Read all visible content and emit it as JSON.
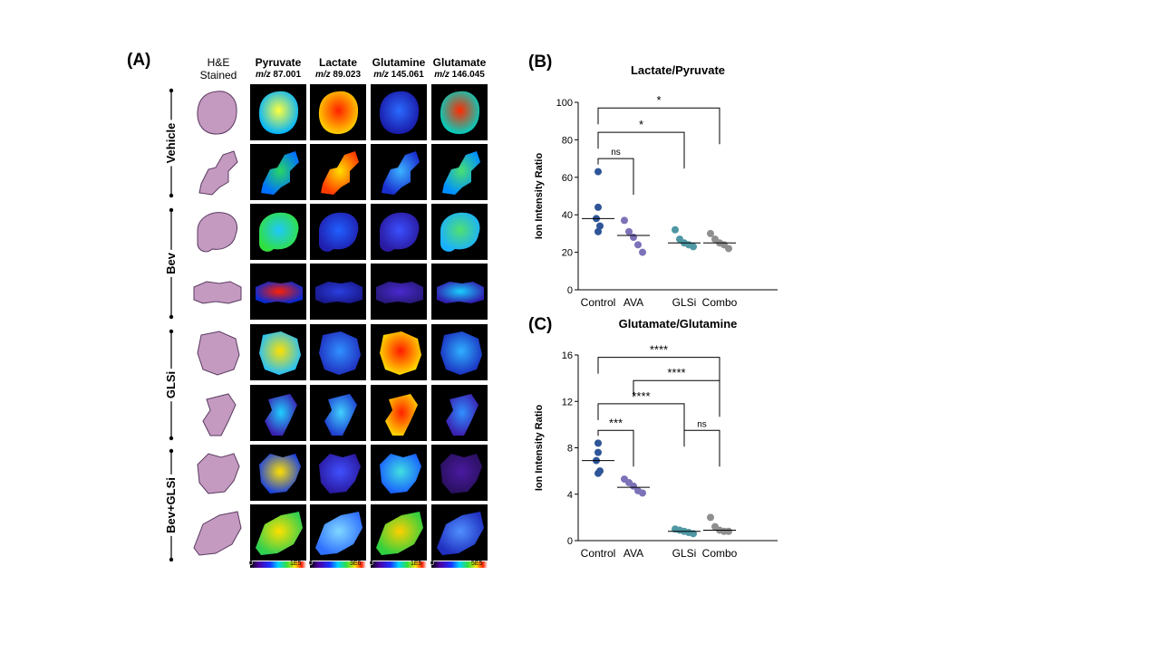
{
  "panel_a": {
    "label": "(A)",
    "he_header": [
      "H&E",
      "Stained"
    ],
    "columns": [
      {
        "name": "Pyruvate",
        "mz_prefix": "m/z",
        "mz": "87.001"
      },
      {
        "name": "Lactate",
        "mz_prefix": "m/z",
        "mz": "89.023"
      },
      {
        "name": "Glutamine",
        "mz_prefix": "m/z",
        "mz": "145.061"
      },
      {
        "name": "Glutamate",
        "mz_prefix": "m/z",
        "mz": "146.045"
      }
    ],
    "groups": [
      "Vehicle",
      "Bev",
      "GLSi",
      "Bev+GLSi"
    ],
    "scales": [
      {
        "min": "0",
        "max": "1E5"
      },
      {
        "min": "0",
        "max": "3E6"
      },
      {
        "min": "0",
        "max": "1E5"
      },
      {
        "min": "0",
        "max": "5E5"
      }
    ]
  },
  "chart_data": [
    {
      "panel": "(B)",
      "type": "scatter",
      "title": "Lactate/Pyruvate",
      "ylabel": "Ion Intensity  Ratio",
      "categories": [
        "Control",
        "AVA",
        "GLSi",
        "Combo"
      ],
      "ylim": [
        0,
        100
      ],
      "yticks": [
        0,
        20,
        40,
        60,
        80,
        100
      ],
      "colors": [
        "#2e5597",
        "#7b72b8",
        "#4e97a3",
        "#8f8f8f"
      ],
      "points": [
        [
          63,
          44,
          38,
          34,
          31
        ],
        [
          37,
          31,
          28,
          24,
          20
        ],
        [
          32,
          27,
          25,
          24,
          23
        ],
        [
          30,
          27,
          25,
          24,
          22
        ]
      ],
      "medians": [
        38,
        29,
        25,
        25
      ],
      "comparisons": [
        {
          "from": 0,
          "to": 1,
          "label": "ns",
          "y": 70
        },
        {
          "from": 0,
          "to": 2,
          "label": "*",
          "y": 84
        },
        {
          "from": 0,
          "to": 3,
          "label": "*",
          "y": 97
        }
      ]
    },
    {
      "panel": "(C)",
      "type": "scatter",
      "title": "Glutamate/Glutamine",
      "ylabel": "Ion Intensity  Ratio",
      "categories": [
        "Control",
        "AVA",
        "GLSi",
        "Combo"
      ],
      "ylim": [
        0,
        16
      ],
      "yticks": [
        0,
        4,
        8,
        12,
        16
      ],
      "colors": [
        "#2e5597",
        "#7b72b8",
        "#4e97a3",
        "#8f8f8f"
      ],
      "points": [
        [
          8.4,
          7.6,
          6.9,
          6.0,
          5.8
        ],
        [
          5.3,
          5.0,
          4.7,
          4.3,
          4.1
        ],
        [
          1.0,
          0.9,
          0.8,
          0.7,
          0.6
        ],
        [
          2.0,
          1.2,
          0.9,
          0.8,
          0.8
        ]
      ],
      "medians": [
        6.9,
        4.6,
        0.8,
        0.9
      ],
      "comparisons": [
        {
          "from": 0,
          "to": 1,
          "label": "***",
          "y": 9.5
        },
        {
          "from": 2,
          "to": 3,
          "label": "ns",
          "y": 9.5
        },
        {
          "from": 0,
          "to": 2,
          "label": "****",
          "y": 11.8
        },
        {
          "from": 1,
          "to": 3,
          "label": "****",
          "y": 13.8
        },
        {
          "from": 0,
          "to": 3,
          "label": "****",
          "y": 15.8
        }
      ]
    }
  ]
}
